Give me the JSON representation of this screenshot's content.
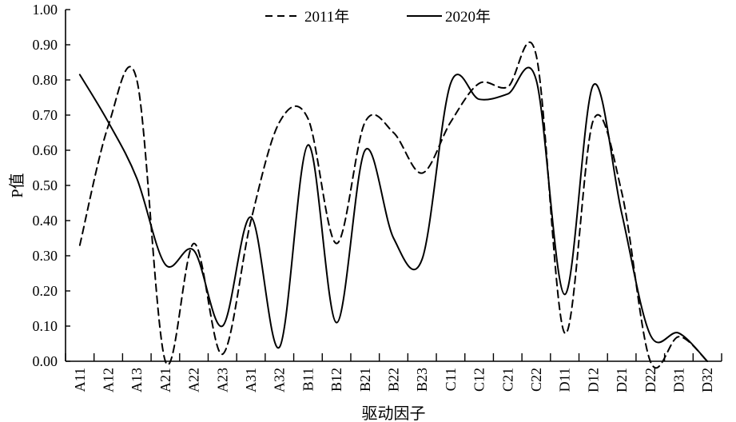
{
  "chart_data": {
    "type": "line",
    "title": "",
    "xlabel": "驱动因子",
    "ylabel": "P值",
    "ylim": [
      0,
      1
    ],
    "yticks": [
      "0.00",
      "0.10",
      "0.20",
      "0.30",
      "0.40",
      "0.50",
      "0.60",
      "0.70",
      "0.80",
      "0.90",
      "1.00"
    ],
    "categories": [
      "A11",
      "A12",
      "A13",
      "A21",
      "A22",
      "A23",
      "A31",
      "A32",
      "B11",
      "B12",
      "B21",
      "B22",
      "B23",
      "C11",
      "C12",
      "C21",
      "C22",
      "D11",
      "D12",
      "D21",
      "D22",
      "D31",
      "D32"
    ],
    "legend_position": "top-center",
    "grid": false,
    "series": [
      {
        "name": "2011年",
        "style": "dashed",
        "color": "#000000",
        "values": [
          0.33,
          0.67,
          0.8,
          0.0,
          0.335,
          0.02,
          0.4,
          0.68,
          0.69,
          0.335,
          0.68,
          0.65,
          0.535,
          0.68,
          0.79,
          0.78,
          0.87,
          0.08,
          0.685,
          0.48,
          0.0,
          0.07,
          0.0
        ]
      },
      {
        "name": "2020年",
        "style": "solid",
        "color": "#000000",
        "values": [
          0.815,
          0.68,
          0.52,
          0.275,
          0.315,
          0.1,
          0.41,
          0.04,
          0.615,
          0.11,
          0.6,
          0.35,
          0.29,
          0.79,
          0.745,
          0.76,
          0.8,
          0.19,
          0.785,
          0.42,
          0.075,
          0.08,
          0.0
        ]
      }
    ]
  }
}
